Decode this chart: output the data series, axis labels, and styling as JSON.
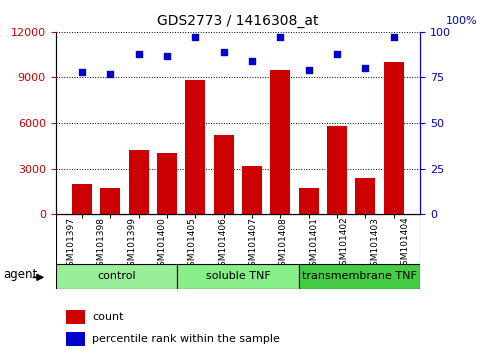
{
  "title": "GDS2773 / 1416308_at",
  "samples": [
    "GSM101397",
    "GSM101398",
    "GSM101399",
    "GSM101400",
    "GSM101405",
    "GSM101406",
    "GSM101407",
    "GSM101408",
    "GSM101401",
    "GSM101402",
    "GSM101403",
    "GSM101404"
  ],
  "counts": [
    2000,
    1700,
    4200,
    4000,
    8800,
    5200,
    3200,
    9500,
    1700,
    5800,
    2400,
    10000
  ],
  "percentiles": [
    78,
    77,
    88,
    87,
    97,
    89,
    84,
    97,
    79,
    88,
    80,
    97
  ],
  "bar_color": "#cc0000",
  "dot_color": "#0000cc",
  "ylim_left": [
    0,
    12000
  ],
  "ylim_right": [
    0,
    100
  ],
  "yticks_left": [
    0,
    3000,
    6000,
    9000,
    12000
  ],
  "yticks_right": [
    0,
    25,
    50,
    75,
    100
  ],
  "groups": [
    {
      "label": "control",
      "start": 0,
      "end": 4,
      "color": "#99ee99"
    },
    {
      "label": "soluble TNF",
      "start": 4,
      "end": 8,
      "color": "#88ee88"
    },
    {
      "label": "transmembrane TNF",
      "start": 8,
      "end": 12,
      "color": "#44cc44"
    }
  ],
  "agent_label": "agent",
  "legend_items": [
    {
      "label": "count",
      "color": "#cc0000"
    },
    {
      "label": "percentile rank within the sample",
      "color": "#0000cc"
    }
  ],
  "tick_area_color": "#c8c8c8",
  "background_color": "#ffffff",
  "plot_bg_color": "#ffffff"
}
